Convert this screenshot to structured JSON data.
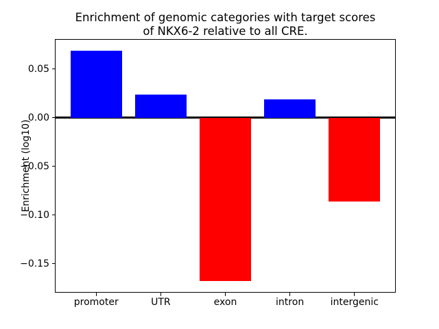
{
  "figure": {
    "background": "#ffffff",
    "frame_color": "#000000"
  },
  "chart_data": {
    "type": "bar",
    "title": "Enrichment of genomic categories with target scores\nof NKX6-2 relative to all CRE.",
    "xlabel": "",
    "ylabel": "Enrichment (log10)",
    "categories": [
      "promoter",
      "UTR",
      "exon",
      "intron",
      "intergenic"
    ],
    "values": [
      0.069,
      0.024,
      -0.168,
      0.019,
      -0.086
    ],
    "positive_color": "#0000ff",
    "negative_color": "#ff0000",
    "bar_colors": [
      "#0000ff",
      "#0000ff",
      "#ff0000",
      "#0000ff",
      "#ff0000"
    ],
    "bar_width": 0.8,
    "xlim": [
      -0.64,
      4.64
    ],
    "ylim": [
      -0.17985,
      0.08085
    ],
    "yticks": [
      0.05,
      0.0,
      -0.05,
      -0.1,
      -0.15
    ],
    "ytick_labels": [
      "0.05",
      "0.00",
      "−0.05",
      "−0.10",
      "−0.15"
    ],
    "zero_line": true,
    "zero_line_color": "#000000",
    "grid": false,
    "legend": null
  }
}
